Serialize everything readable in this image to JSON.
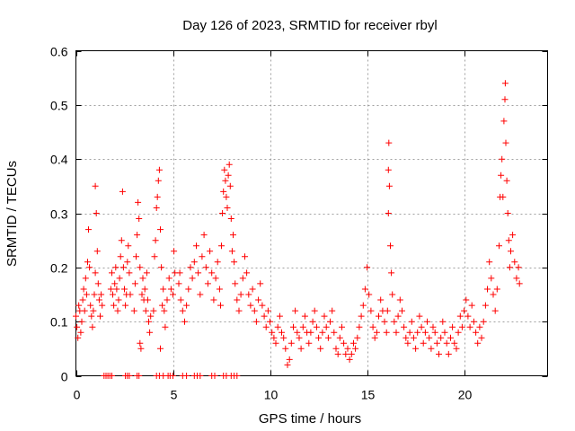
{
  "chart_data": {
    "type": "scatter",
    "title": "Day 126 of 2023, SRMTID for receiver rbyl",
    "xlabel": "GPS time / hours",
    "ylabel": "SRMTID / TECUs",
    "xlim": [
      0,
      24.3
    ],
    "ylim": [
      0,
      0.6
    ],
    "xticks": [
      0,
      5,
      10,
      15,
      20
    ],
    "xtick_labels": [
      "0",
      "5",
      "10",
      "15",
      "20"
    ],
    "yticks": [
      0,
      0.1,
      0.2,
      0.3,
      0.4,
      0.5,
      0.6
    ],
    "ytick_labels": [
      "0",
      "0.1",
      "0.2",
      "0.3",
      "0.4",
      "0.5",
      "0.6"
    ],
    "grid": true,
    "marker": "+",
    "color": "#ff0000",
    "series": [
      {
        "name": "SRMTID",
        "points": [
          [
            0.0,
            0.11
          ],
          [
            0.05,
            0.09
          ],
          [
            0.1,
            0.07
          ],
          [
            0.15,
            0.13
          ],
          [
            0.2,
            0.12
          ],
          [
            0.25,
            0.08
          ],
          [
            0.3,
            0.1
          ],
          [
            0.35,
            0.14
          ],
          [
            0.4,
            0.16
          ],
          [
            0.45,
            0.12
          ],
          [
            0.5,
            0.18
          ],
          [
            0.55,
            0.15
          ],
          [
            0.6,
            0.21
          ],
          [
            0.65,
            0.27
          ],
          [
            0.7,
            0.2
          ],
          [
            0.75,
            0.13
          ],
          [
            0.8,
            0.11
          ],
          [
            0.85,
            0.09
          ],
          [
            0.9,
            0.12
          ],
          [
            0.95,
            0.15
          ],
          [
            1.0,
            0.19
          ],
          [
            1.0,
            0.35
          ],
          [
            1.05,
            0.3
          ],
          [
            1.1,
            0.23
          ],
          [
            1.15,
            0.17
          ],
          [
            1.2,
            0.14
          ],
          [
            1.25,
            0.11
          ],
          [
            1.3,
            0.15
          ],
          [
            1.35,
            0.13
          ],
          [
            1.8,
            0.16
          ],
          [
            1.85,
            0.19
          ],
          [
            1.9,
            0.15
          ],
          [
            1.95,
            0.13
          ],
          [
            2.0,
            0.17
          ],
          [
            2.05,
            0.2
          ],
          [
            2.1,
            0.16
          ],
          [
            2.15,
            0.12
          ],
          [
            2.2,
            0.14
          ],
          [
            2.25,
            0.18
          ],
          [
            2.3,
            0.22
          ],
          [
            2.35,
            0.25
          ],
          [
            2.4,
            0.34
          ],
          [
            2.45,
            0.2
          ],
          [
            2.5,
            0.16
          ],
          [
            2.55,
            0.13
          ],
          [
            2.6,
            0.15
          ],
          [
            2.65,
            0.21
          ],
          [
            2.7,
            0.24
          ],
          [
            2.75,
            0.19
          ],
          [
            2.8,
            0.15
          ],
          [
            3.0,
            0.12
          ],
          [
            3.05,
            0.17
          ],
          [
            3.1,
            0.22
          ],
          [
            3.15,
            0.26
          ],
          [
            3.2,
            0.32
          ],
          [
            3.25,
            0.29
          ],
          [
            3.3,
            0.2
          ],
          [
            3.3,
            0.06
          ],
          [
            3.35,
            0.05
          ],
          [
            3.4,
            0.15
          ],
          [
            3.45,
            0.18
          ],
          [
            3.5,
            0.14
          ],
          [
            3.55,
            0.16
          ],
          [
            3.6,
            0.12
          ],
          [
            3.65,
            0.19
          ],
          [
            3.7,
            0.14
          ],
          [
            3.75,
            0.1
          ],
          [
            3.8,
            0.08
          ],
          [
            3.85,
            0.11
          ],
          [
            4.0,
            0.12
          ],
          [
            4.05,
            0.22
          ],
          [
            4.1,
            0.25
          ],
          [
            4.15,
            0.31
          ],
          [
            4.2,
            0.33
          ],
          [
            4.25,
            0.36
          ],
          [
            4.3,
            0.38
          ],
          [
            4.35,
            0.27
          ],
          [
            4.35,
            0.05
          ],
          [
            4.4,
            0.2
          ],
          [
            4.45,
            0.13
          ],
          [
            4.5,
            0.16
          ],
          [
            4.55,
            0.12
          ],
          [
            4.6,
            0.09
          ],
          [
            4.7,
            0.14
          ],
          [
            4.8,
            0.18
          ],
          [
            4.9,
            0.16
          ],
          [
            5.0,
            0.15
          ],
          [
            5.05,
            0.23
          ],
          [
            5.1,
            0.19
          ],
          [
            5.3,
            0.17
          ],
          [
            5.35,
            0.19
          ],
          [
            5.4,
            0.14
          ],
          [
            5.5,
            0.12
          ],
          [
            5.6,
            0.1
          ],
          [
            5.7,
            0.13
          ],
          [
            5.8,
            0.16
          ],
          [
            5.9,
            0.2
          ],
          [
            6.0,
            0.18
          ],
          [
            6.1,
            0.21
          ],
          [
            6.2,
            0.24
          ],
          [
            6.3,
            0.19
          ],
          [
            6.4,
            0.15
          ],
          [
            6.5,
            0.22
          ],
          [
            6.6,
            0.26
          ],
          [
            6.7,
            0.2
          ],
          [
            6.8,
            0.17
          ],
          [
            6.9,
            0.23
          ],
          [
            7.0,
            0.19
          ],
          [
            7.1,
            0.14
          ],
          [
            7.2,
            0.18
          ],
          [
            7.3,
            0.21
          ],
          [
            7.4,
            0.16
          ],
          [
            7.45,
            0.13
          ],
          [
            7.5,
            0.24
          ],
          [
            7.55,
            0.3
          ],
          [
            7.6,
            0.34
          ],
          [
            7.65,
            0.38
          ],
          [
            7.7,
            0.36
          ],
          [
            7.75,
            0.33
          ],
          [
            7.8,
            0.31
          ],
          [
            7.85,
            0.37
          ],
          [
            7.9,
            0.39
          ],
          [
            7.95,
            0.35
          ],
          [
            8.0,
            0.29
          ],
          [
            8.05,
            0.23
          ],
          [
            8.1,
            0.26
          ],
          [
            8.15,
            0.21
          ],
          [
            8.2,
            0.17
          ],
          [
            8.3,
            0.14
          ],
          [
            8.4,
            0.12
          ],
          [
            8.5,
            0.15
          ],
          [
            8.6,
            0.18
          ],
          [
            8.7,
            0.22
          ],
          [
            8.8,
            0.19
          ],
          [
            8.9,
            0.15
          ],
          [
            9.0,
            0.13
          ],
          [
            9.1,
            0.16
          ],
          [
            9.2,
            0.12
          ],
          [
            9.3,
            0.1
          ],
          [
            9.4,
            0.14
          ],
          [
            9.5,
            0.17
          ],
          [
            9.6,
            0.13
          ],
          [
            9.7,
            0.11
          ],
          [
            9.8,
            0.09
          ],
          [
            9.9,
            0.12
          ],
          [
            10.0,
            0.1
          ],
          [
            10.1,
            0.08
          ],
          [
            10.2,
            0.07
          ],
          [
            10.3,
            0.06
          ],
          [
            10.4,
            0.09
          ],
          [
            10.5,
            0.11
          ],
          [
            10.6,
            0.08
          ],
          [
            10.7,
            0.07
          ],
          [
            10.8,
            0.05
          ],
          [
            10.9,
            0.02
          ],
          [
            11.0,
            0.03
          ],
          [
            11.1,
            0.06
          ],
          [
            11.2,
            0.09
          ],
          [
            11.3,
            0.12
          ],
          [
            11.4,
            0.08
          ],
          [
            11.5,
            0.07
          ],
          [
            11.6,
            0.05
          ],
          [
            11.7,
            0.09
          ],
          [
            11.8,
            0.11
          ],
          [
            11.9,
            0.08
          ],
          [
            12.0,
            0.06
          ],
          [
            12.1,
            0.08
          ],
          [
            12.2,
            0.1
          ],
          [
            12.3,
            0.12
          ],
          [
            12.4,
            0.09
          ],
          [
            12.5,
            0.07
          ],
          [
            12.6,
            0.05
          ],
          [
            12.7,
            0.08
          ],
          [
            12.8,
            0.11
          ],
          [
            12.9,
            0.09
          ],
          [
            13.0,
            0.07
          ],
          [
            13.1,
            0.1
          ],
          [
            13.2,
            0.12
          ],
          [
            13.3,
            0.08
          ],
          [
            13.4,
            0.05
          ],
          [
            13.5,
            0.04
          ],
          [
            13.6,
            0.07
          ],
          [
            13.7,
            0.09
          ],
          [
            13.8,
            0.06
          ],
          [
            13.9,
            0.04
          ],
          [
            14.0,
            0.05
          ],
          [
            14.1,
            0.03
          ],
          [
            14.2,
            0.04
          ],
          [
            14.3,
            0.06
          ],
          [
            14.4,
            0.05
          ],
          [
            14.5,
            0.07
          ],
          [
            14.6,
            0.09
          ],
          [
            14.7,
            0.11
          ],
          [
            14.8,
            0.13
          ],
          [
            14.9,
            0.16
          ],
          [
            15.0,
            0.2
          ],
          [
            15.1,
            0.15
          ],
          [
            15.2,
            0.12
          ],
          [
            15.3,
            0.09
          ],
          [
            15.4,
            0.07
          ],
          [
            15.5,
            0.08
          ],
          [
            15.6,
            0.11
          ],
          [
            15.7,
            0.14
          ],
          [
            15.8,
            0.12
          ],
          [
            15.9,
            0.1
          ],
          [
            16.0,
            0.08
          ],
          [
            16.05,
            0.12
          ],
          [
            16.1,
            0.3
          ],
          [
            16.1,
            0.38
          ],
          [
            16.12,
            0.43
          ],
          [
            16.15,
            0.35
          ],
          [
            16.2,
            0.24
          ],
          [
            16.25,
            0.19
          ],
          [
            16.3,
            0.15
          ],
          [
            16.4,
            0.1
          ],
          [
            16.5,
            0.08
          ],
          [
            16.6,
            0.11
          ],
          [
            16.7,
            0.14
          ],
          [
            16.8,
            0.12
          ],
          [
            16.9,
            0.09
          ],
          [
            17.0,
            0.07
          ],
          [
            17.1,
            0.06
          ],
          [
            17.2,
            0.08
          ],
          [
            17.3,
            0.1
          ],
          [
            17.4,
            0.07
          ],
          [
            17.5,
            0.05
          ],
          [
            17.6,
            0.08
          ],
          [
            17.7,
            0.11
          ],
          [
            17.8,
            0.09
          ],
          [
            17.9,
            0.06
          ],
          [
            18.0,
            0.08
          ],
          [
            18.1,
            0.1
          ],
          [
            18.2,
            0.07
          ],
          [
            18.3,
            0.05
          ],
          [
            18.4,
            0.09
          ],
          [
            18.5,
            0.08
          ],
          [
            18.6,
            0.06
          ],
          [
            18.7,
            0.04
          ],
          [
            18.8,
            0.07
          ],
          [
            18.9,
            0.1
          ],
          [
            19.0,
            0.08
          ],
          [
            19.1,
            0.06
          ],
          [
            19.2,
            0.04
          ],
          [
            19.3,
            0.07
          ],
          [
            19.4,
            0.09
          ],
          [
            19.5,
            0.06
          ],
          [
            19.6,
            0.05
          ],
          [
            19.7,
            0.08
          ],
          [
            19.8,
            0.11
          ],
          [
            19.9,
            0.09
          ],
          [
            20.0,
            0.12
          ],
          [
            20.1,
            0.14
          ],
          [
            20.2,
            0.11
          ],
          [
            20.3,
            0.09
          ],
          [
            20.4,
            0.13
          ],
          [
            20.5,
            0.1
          ],
          [
            20.6,
            0.08
          ],
          [
            20.7,
            0.06
          ],
          [
            20.8,
            0.09
          ],
          [
            20.9,
            0.07
          ],
          [
            21.0,
            0.1
          ],
          [
            21.1,
            0.13
          ],
          [
            21.2,
            0.16
          ],
          [
            21.3,
            0.21
          ],
          [
            21.4,
            0.18
          ],
          [
            21.5,
            0.15
          ],
          [
            21.6,
            0.12
          ],
          [
            21.7,
            0.16
          ],
          [
            21.8,
            0.24
          ],
          [
            21.85,
            0.33
          ],
          [
            21.9,
            0.37
          ],
          [
            21.95,
            0.4
          ],
          [
            22.0,
            0.33
          ],
          [
            22.05,
            0.47
          ],
          [
            22.1,
            0.51
          ],
          [
            22.12,
            0.54
          ],
          [
            22.15,
            0.43
          ],
          [
            22.2,
            0.36
          ],
          [
            22.25,
            0.3
          ],
          [
            22.3,
            0.25
          ],
          [
            22.35,
            0.2
          ],
          [
            22.4,
            0.23
          ],
          [
            22.5,
            0.26
          ],
          [
            22.6,
            0.21
          ],
          [
            22.7,
            0.18
          ],
          [
            22.8,
            0.2
          ],
          [
            22.85,
            0.17
          ],
          [
            1.45,
            0.0
          ],
          [
            1.55,
            0.0
          ],
          [
            1.65,
            0.0
          ],
          [
            1.75,
            0.0
          ],
          [
            1.85,
            0.0
          ],
          [
            2.55,
            0.0
          ],
          [
            2.65,
            0.0
          ],
          [
            2.75,
            0.0
          ],
          [
            3.15,
            0.0
          ],
          [
            3.25,
            0.0
          ],
          [
            4.15,
            0.0
          ],
          [
            4.3,
            0.0
          ],
          [
            4.5,
            0.0
          ],
          [
            4.75,
            0.0
          ],
          [
            4.85,
            0.0
          ],
          [
            5.0,
            0.0
          ],
          [
            5.5,
            0.0
          ],
          [
            5.7,
            0.0
          ],
          [
            6.1,
            0.0
          ],
          [
            6.25,
            0.0
          ],
          [
            6.4,
            0.0
          ],
          [
            7.0,
            0.0
          ],
          [
            7.15,
            0.0
          ],
          [
            7.6,
            0.0
          ],
          [
            7.75,
            0.0
          ],
          [
            8.0,
            0.0
          ],
          [
            8.15,
            0.0
          ],
          [
            8.3,
            0.0
          ]
        ]
      }
    ]
  }
}
